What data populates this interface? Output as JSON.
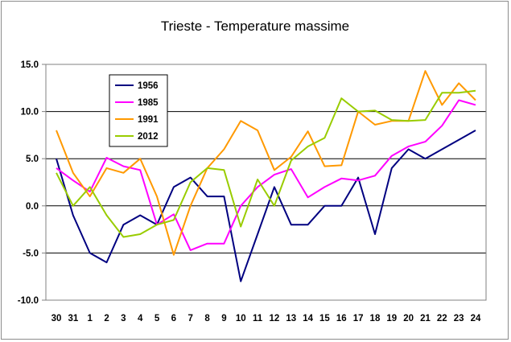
{
  "chart_data": {
    "type": "line",
    "title": "Trieste - Temperature massime",
    "xlabel": "",
    "ylabel": "",
    "x": [
      "30",
      "31",
      "1",
      "2",
      "3",
      "4",
      "5",
      "6",
      "7",
      "8",
      "9",
      "10",
      "11",
      "12",
      "13",
      "14",
      "15",
      "16",
      "17",
      "18",
      "19",
      "20",
      "21",
      "22",
      "23",
      "24"
    ],
    "ylim": [
      -10,
      15
    ],
    "yticks": [
      "15.0",
      "10.0",
      "5.0",
      "0.0",
      "-5.0",
      "-10.0"
    ],
    "grid": "horizontal",
    "legend_position": "top-left",
    "series": [
      {
        "name": "1956",
        "color": "#000080",
        "values": [
          5,
          -1,
          -5,
          -6,
          -2,
          -1,
          -2,
          2,
          3,
          1,
          1,
          -8,
          -3,
          2,
          -2,
          -2,
          0,
          0,
          3,
          -3,
          4,
          6,
          5,
          6,
          7,
          8
        ]
      },
      {
        "name": "1985",
        "color": "#ff00ff",
        "values": [
          4,
          2.7,
          1.5,
          5.1,
          4.2,
          3.8,
          -2,
          -0.9,
          -4.7,
          -4,
          -4,
          0,
          2,
          3.3,
          3.9,
          0.9,
          2,
          2.9,
          2.7,
          3.2,
          5.3,
          6.3,
          6.8,
          8.5,
          11.2,
          10.7
        ]
      },
      {
        "name": "1991",
        "color": "#ff9900",
        "values": [
          8,
          3.5,
          1,
          4,
          3.5,
          5,
          1,
          -5.2,
          0,
          4,
          6,
          9,
          8,
          3.8,
          5.2,
          7.9,
          4.2,
          4.3,
          10,
          8.6,
          9,
          9,
          14.3,
          10.7,
          13,
          11.2
        ]
      },
      {
        "name": "2012",
        "color": "#99cc00",
        "values": [
          3.5,
          0,
          2,
          -1,
          -3.3,
          -3,
          -2,
          -1.5,
          2.5,
          4,
          3.8,
          -2.2,
          2.8,
          0,
          4.8,
          6.3,
          7.2,
          11.4,
          10,
          10.1,
          9.1,
          9,
          9.1,
          12,
          12,
          12.2
        ]
      }
    ]
  }
}
